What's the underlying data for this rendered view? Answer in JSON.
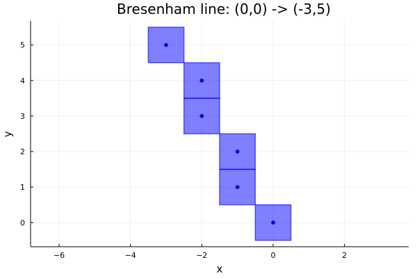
{
  "chart_data": {
    "type": "scatter",
    "title": "Bresenham line: (0,0) -> (-3,5)",
    "xlabel": "x",
    "ylabel": "y",
    "xlim": [
      -6.8,
      3.8
    ],
    "ylim": [
      -0.68,
      5.68
    ],
    "xticks": [
      -6,
      -4,
      -2,
      0,
      2
    ],
    "xtick_labels": [
      "−6",
      "−4",
      "−2",
      "0",
      "2"
    ],
    "yticks": [
      0,
      1,
      2,
      3,
      4,
      5
    ],
    "ytick_labels": [
      "0",
      "1",
      "2",
      "3",
      "4",
      "5"
    ],
    "grid": true,
    "legend": "none",
    "points": [
      {
        "x": 0,
        "y": 0
      },
      {
        "x": -1,
        "y": 1
      },
      {
        "x": -1,
        "y": 2
      },
      {
        "x": -2,
        "y": 3
      },
      {
        "x": -2,
        "y": 4
      },
      {
        "x": -3,
        "y": 5
      }
    ],
    "pixel_size": 1,
    "colors": {
      "fill": "#0000ff",
      "fill_opacity": 0.5,
      "edge": "#0000ff",
      "dot": "#0000ff"
    }
  }
}
